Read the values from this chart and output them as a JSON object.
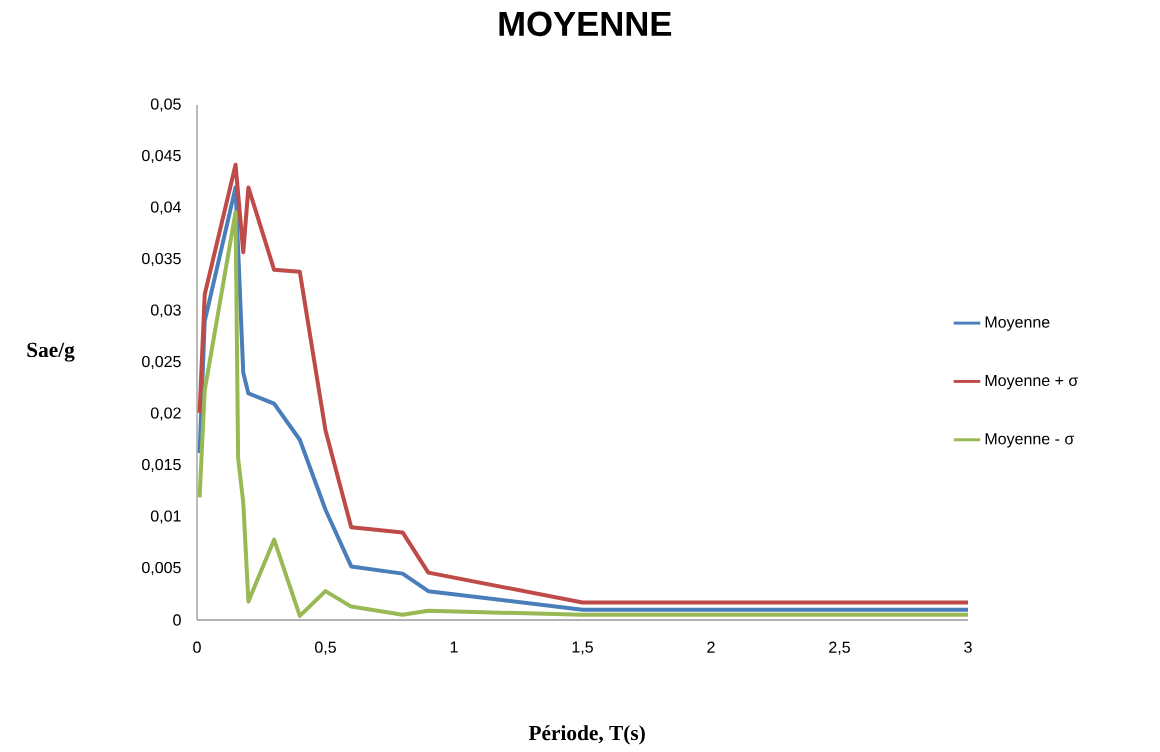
{
  "chart_data": {
    "type": "line",
    "title": "MOYENNE",
    "xlabel": "Période, T(s)",
    "ylabel": "Sae/g",
    "xlim": [
      0,
      3
    ],
    "ylim": [
      0,
      0.05
    ],
    "xticks": [
      0,
      {
        "value": 0.5,
        "label": "0,5"
      },
      1,
      {
        "value": 1.5,
        "label": "1,5"
      },
      2,
      {
        "value": 2.5,
        "label": "2,5"
      },
      3
    ],
    "yticks": [
      0,
      {
        "value": 0.005,
        "label": "0,005"
      },
      {
        "value": 0.01,
        "label": "0,01"
      },
      {
        "value": 0.015,
        "label": "0,015"
      },
      {
        "value": 0.02,
        "label": "0,02"
      },
      {
        "value": 0.025,
        "label": "0,025"
      },
      {
        "value": 0.03,
        "label": "0,03"
      },
      {
        "value": 0.035,
        "label": "0,035"
      },
      {
        "value": 0.04,
        "label": "0,04"
      },
      {
        "value": 0.045,
        "label": "0,045"
      },
      {
        "value": 0.05,
        "label": "0,05"
      }
    ],
    "grid": false,
    "legend": "right",
    "marker": "none",
    "line_style": "solid",
    "series": [
      {
        "name": "Moyenne",
        "color": "#4a7ebb",
        "x": [
          0.01,
          0.03,
          0.15,
          0.18,
          0.2,
          0.3,
          0.4,
          0.5,
          0.6,
          0.8,
          0.9,
          1.5,
          3
        ],
        "values": [
          0.0162,
          0.029,
          0.042,
          0.024,
          0.022,
          0.021,
          0.0175,
          0.0107,
          0.0052,
          0.0045,
          0.0028,
          0.001,
          0.001
        ]
      },
      {
        "name": "Moyenne + σ",
        "color": "#be4b48",
        "x": [
          0.01,
          0.03,
          0.15,
          0.18,
          0.2,
          0.3,
          0.4,
          0.5,
          0.6,
          0.8,
          0.9,
          1.5,
          3
        ],
        "values": [
          0.0201,
          0.0316,
          0.0442,
          0.0357,
          0.042,
          0.034,
          0.0338,
          0.0184,
          0.009,
          0.0085,
          0.0046,
          0.0017,
          0.0017
        ]
      },
      {
        "name": "Moyenne - σ",
        "color": "#98b954",
        "x": [
          0.01,
          0.03,
          0.15,
          0.16,
          0.18,
          0.2,
          0.3,
          0.4,
          0.5,
          0.6,
          0.8,
          0.9,
          1.5,
          3
        ],
        "values": [
          0.0119,
          0.0223,
          0.0396,
          0.0157,
          0.0114,
          0.0018,
          0.0078,
          0.0004,
          0.0028,
          0.0013,
          0.0005,
          0.0009,
          0.0005,
          0.0005
        ]
      }
    ]
  }
}
